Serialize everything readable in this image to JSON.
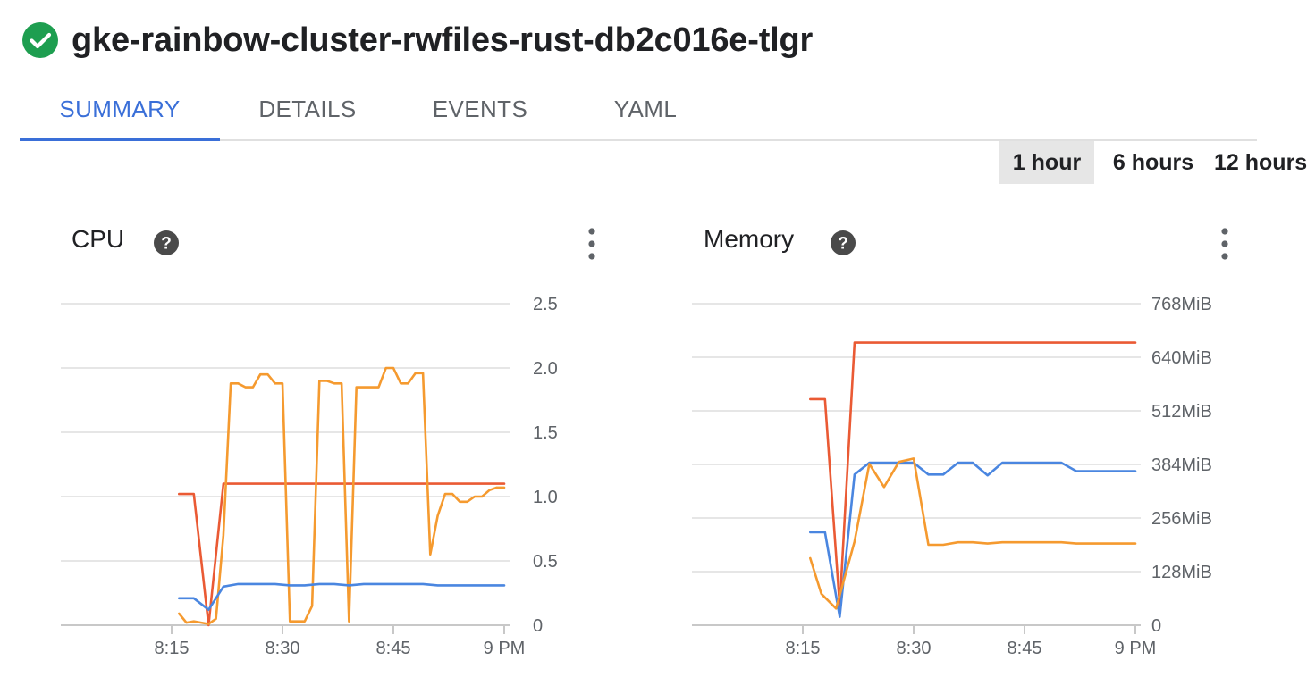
{
  "header": {
    "title": "gke-rainbow-cluster-rwfiles-rust-db2c016e-tlgr",
    "status_icon": "check-circle-icon",
    "status_color": "#1e9e50"
  },
  "tabs": [
    {
      "label": "SUMMARY",
      "active": true
    },
    {
      "label": "DETAILS",
      "active": false
    },
    {
      "label": "EVENTS",
      "active": false
    },
    {
      "label": "YAML",
      "active": false
    }
  ],
  "time_ranges": [
    {
      "label": "1 hour",
      "selected": true
    },
    {
      "label": "6 hours",
      "selected": false
    },
    {
      "label": "12 hours",
      "selected": false
    }
  ],
  "colors": {
    "accent": "#3a6fd8",
    "series_red": "#ea5a34",
    "series_orange": "#f59a2f",
    "series_blue": "#4a86e0"
  },
  "charts": {
    "cpu": {
      "title": "CPU",
      "help_icon": "help-circle-icon",
      "menu_icon": "more-vert-icon"
    },
    "memory": {
      "title": "Memory",
      "help_icon": "help-circle-icon",
      "menu_icon": "more-vert-icon"
    }
  },
  "chart_data": [
    {
      "type": "line",
      "title": "CPU",
      "xlabel": "",
      "ylabel": "",
      "x_ticks": [
        {
          "t": 15,
          "label": "8:15"
        },
        {
          "t": 30,
          "label": "8:30"
        },
        {
          "t": 45,
          "label": "8:45"
        },
        {
          "t": 60,
          "label": "9 PM"
        }
      ],
      "x_range_minutes": [
        0,
        60
      ],
      "y_ticks": [
        {
          "v": 0,
          "label": "0"
        },
        {
          "v": 0.5,
          "label": "0.5"
        },
        {
          "v": 1.0,
          "label": "1.0"
        },
        {
          "v": 1.5,
          "label": "1.5"
        },
        {
          "v": 2.0,
          "label": "2.0"
        },
        {
          "v": 2.5,
          "label": "2.5"
        }
      ],
      "ylim": [
        0,
        2.5
      ],
      "y_axis_side": "right",
      "grid": true,
      "series": [
        {
          "color": "#ea5a34",
          "points": [
            [
              16.0,
              1.02
            ],
            [
              18.0,
              1.02
            ],
            [
              20.0,
              0.0
            ],
            [
              22.0,
              1.1
            ],
            [
              60.0,
              1.1
            ]
          ]
        },
        {
          "color": "#f59a2f",
          "points": [
            [
              16.0,
              0.09
            ],
            [
              17.0,
              0.02
            ],
            [
              18.0,
              0.03
            ],
            [
              19.0,
              0.02
            ],
            [
              20.0,
              0.01
            ],
            [
              21.0,
              0.05
            ],
            [
              22.0,
              0.7
            ],
            [
              23.0,
              1.88
            ],
            [
              24.0,
              1.88
            ],
            [
              25.0,
              1.85
            ],
            [
              26.0,
              1.85
            ],
            [
              27.0,
              1.95
            ],
            [
              28.0,
              1.95
            ],
            [
              29.0,
              1.88
            ],
            [
              30.0,
              1.88
            ],
            [
              31.0,
              0.03
            ],
            [
              32.0,
              0.03
            ],
            [
              33.0,
              0.03
            ],
            [
              34.0,
              0.15
            ],
            [
              35.0,
              1.9
            ],
            [
              36.0,
              1.9
            ],
            [
              37.0,
              1.88
            ],
            [
              38.0,
              1.88
            ],
            [
              39.0,
              0.03
            ],
            [
              40.0,
              1.85
            ],
            [
              41.0,
              1.85
            ],
            [
              42.0,
              1.85
            ],
            [
              43.0,
              1.85
            ],
            [
              44.0,
              2.0
            ],
            [
              45.0,
              2.0
            ],
            [
              46.0,
              1.88
            ],
            [
              47.0,
              1.88
            ],
            [
              48.0,
              1.96
            ],
            [
              49.0,
              1.96
            ],
            [
              50.0,
              0.55
            ],
            [
              51.0,
              0.85
            ],
            [
              52.0,
              1.02
            ],
            [
              53.0,
              1.02
            ],
            [
              54.0,
              0.96
            ],
            [
              55.0,
              0.96
            ],
            [
              56.0,
              1.0
            ],
            [
              57.0,
              1.0
            ],
            [
              58.0,
              1.05
            ],
            [
              59.0,
              1.07
            ],
            [
              60.0,
              1.07
            ]
          ]
        },
        {
          "color": "#4a86e0",
          "points": [
            [
              16.0,
              0.21
            ],
            [
              18.0,
              0.21
            ],
            [
              20.0,
              0.12
            ],
            [
              22.0,
              0.3
            ],
            [
              24.0,
              0.32
            ],
            [
              29.0,
              0.32
            ],
            [
              31.0,
              0.31
            ],
            [
              33.0,
              0.31
            ],
            [
              35.0,
              0.32
            ],
            [
              37.0,
              0.32
            ],
            [
              39.0,
              0.31
            ],
            [
              41.0,
              0.32
            ],
            [
              49.0,
              0.32
            ],
            [
              51.0,
              0.31
            ],
            [
              60.0,
              0.31
            ]
          ]
        }
      ]
    },
    {
      "type": "line",
      "title": "Memory",
      "xlabel": "",
      "ylabel": "",
      "x_ticks": [
        {
          "t": 15,
          "label": "8:15"
        },
        {
          "t": 30,
          "label": "8:30"
        },
        {
          "t": 45,
          "label": "8:45"
        },
        {
          "t": 60,
          "label": "9 PM"
        }
      ],
      "x_range_minutes": [
        0,
        60
      ],
      "y_ticks": [
        {
          "v": 0,
          "label": "0"
        },
        {
          "v": 128,
          "label": "128MiB"
        },
        {
          "v": 256,
          "label": "256MiB"
        },
        {
          "v": 384,
          "label": "384MiB"
        },
        {
          "v": 512,
          "label": "512MiB"
        },
        {
          "v": 640,
          "label": "640MiB"
        },
        {
          "v": 768,
          "label": "768MiB"
        }
      ],
      "ylim": [
        0,
        768
      ],
      "y_axis_side": "right",
      "grid": true,
      "series": [
        {
          "color": "#ea5a34",
          "points": [
            [
              16.0,
              540
            ],
            [
              18.0,
              540
            ],
            [
              20.0,
              45
            ],
            [
              22.0,
              675
            ],
            [
              60.0,
              675
            ]
          ]
        },
        {
          "color": "#4a86e0",
          "points": [
            [
              16.0,
              222
            ],
            [
              18.0,
              222
            ],
            [
              20.0,
              20
            ],
            [
              22.0,
              360
            ],
            [
              24.0,
              388
            ],
            [
              30.0,
              388
            ],
            [
              32.0,
              360
            ],
            [
              34.0,
              360
            ],
            [
              36.0,
              388
            ],
            [
              38.0,
              388
            ],
            [
              40.0,
              358
            ],
            [
              42.0,
              388
            ],
            [
              50.0,
              388
            ],
            [
              52.0,
              368
            ],
            [
              60.0,
              368
            ]
          ]
        },
        {
          "color": "#f59a2f",
          "points": [
            [
              16.0,
              160
            ],
            [
              17.5,
              75
            ],
            [
              19.5,
              40
            ],
            [
              22.0,
              200
            ],
            [
              24.0,
              385
            ],
            [
              26.0,
              330
            ],
            [
              28.0,
              390
            ],
            [
              30.0,
              398
            ],
            [
              32.0,
              192
            ],
            [
              34.0,
              192
            ],
            [
              36.0,
              198
            ],
            [
              38.0,
              198
            ],
            [
              40.0,
              195
            ],
            [
              42.0,
              198
            ],
            [
              50.0,
              198
            ],
            [
              52.0,
              195
            ],
            [
              60.0,
              195
            ]
          ]
        }
      ]
    }
  ]
}
